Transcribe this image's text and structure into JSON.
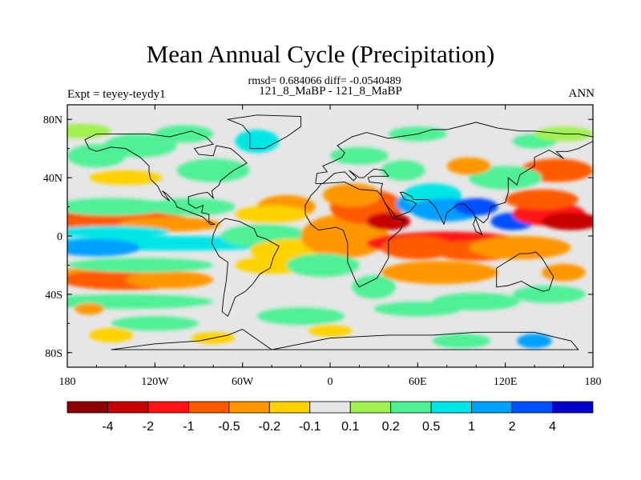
{
  "header": {
    "title": "Mean Annual Cycle (Precipitation)",
    "stats": "rmsd= 0.684066 diff= -0.0540489",
    "left_label": "Expt = teyey-teydy1",
    "center_label": "121_8_MaBP - 121_8_MaBP",
    "right_label": "ANN"
  },
  "chart_data": {
    "type": "heatmap",
    "title": "Mean Annual Cycle (Precipitation)",
    "subtitle": "rmsd= 0.684066 diff= -0.0540489",
    "xlabel": "",
    "ylabel": "",
    "xlim": [
      -180,
      180
    ],
    "ylim": [
      -90,
      90
    ],
    "x_ticks": [
      {
        "value": -180,
        "label": "180"
      },
      {
        "value": -120,
        "label": "120W"
      },
      {
        "value": -60,
        "label": "60W"
      },
      {
        "value": 0,
        "label": "0"
      },
      {
        "value": 60,
        "label": "60E"
      },
      {
        "value": 120,
        "label": "120E"
      },
      {
        "value": 180,
        "label": "180"
      }
    ],
    "y_ticks": [
      {
        "value": 80,
        "label": "80N"
      },
      {
        "value": 40,
        "label": "40N"
      },
      {
        "value": 0,
        "label": "0"
      },
      {
        "value": -40,
        "label": "40S"
      },
      {
        "value": -80,
        "label": "80S"
      }
    ],
    "colorbar": {
      "colors": [
        "#8c0000",
        "#c80000",
        "#ff1414",
        "#ff5a00",
        "#ff9600",
        "#ffd200",
        "#e6e6e6",
        "#a0f050",
        "#50f096",
        "#00e6e6",
        "#00a0ff",
        "#0050ff",
        "#0000c8"
      ],
      "labels": [
        "-4",
        "-2",
        "-1",
        "-0.5",
        "-0.2",
        "-0.1",
        "0.1",
        "0.2",
        "0.5",
        "1",
        "2",
        "4"
      ],
      "neutral_color": "#e6e6e6"
    },
    "anomalies": [
      {
        "lon": -172,
        "lat": 12,
        "w": 22,
        "h": 6,
        "cls": 1
      },
      {
        "lon": -160,
        "lat": 12,
        "w": 30,
        "h": 8,
        "cls": 2
      },
      {
        "lon": -140,
        "lat": 10,
        "w": 45,
        "h": 7,
        "cls": 3
      },
      {
        "lon": -110,
        "lat": 8,
        "w": 35,
        "h": 5,
        "cls": 4
      },
      {
        "lon": -150,
        "lat": 3,
        "w": 40,
        "h": 4,
        "cls": 9
      },
      {
        "lon": -110,
        "lat": -5,
        "w": 90,
        "h": 5,
        "cls": 9
      },
      {
        "lon": -160,
        "lat": -8,
        "w": 30,
        "h": 6,
        "cls": 10
      },
      {
        "lon": -150,
        "lat": 20,
        "w": 40,
        "h": 6,
        "cls": 8
      },
      {
        "lon": -95,
        "lat": 20,
        "w": 30,
        "h": 6,
        "cls": 8
      },
      {
        "lon": -170,
        "lat": -28,
        "w": 20,
        "h": 6,
        "cls": 4
      },
      {
        "lon": -140,
        "lat": -30,
        "w": 45,
        "h": 7,
        "cls": 3
      },
      {
        "lon": -110,
        "lat": -30,
        "w": 30,
        "h": 6,
        "cls": 4
      },
      {
        "lon": -130,
        "lat": -20,
        "w": 50,
        "h": 5,
        "cls": 8
      },
      {
        "lon": -140,
        "lat": -45,
        "w": 60,
        "h": 5,
        "cls": 8
      },
      {
        "lon": -160,
        "lat": 55,
        "w": 20,
        "h": 8,
        "cls": 8
      },
      {
        "lon": -130,
        "lat": 62,
        "w": 25,
        "h": 8,
        "cls": 8
      },
      {
        "lon": -170,
        "lat": 72,
        "w": 20,
        "h": 5,
        "cls": 7
      },
      {
        "lon": -140,
        "lat": 40,
        "w": 25,
        "h": 5,
        "cls": 5
      },
      {
        "lon": -80,
        "lat": 45,
        "w": 25,
        "h": 8,
        "cls": 8
      },
      {
        "lon": -50,
        "lat": 65,
        "w": 15,
        "h": 8,
        "cls": 9
      },
      {
        "lon": -30,
        "lat": 20,
        "w": 20,
        "h": 8,
        "cls": 4
      },
      {
        "lon": -40,
        "lat": 15,
        "w": 25,
        "h": 6,
        "cls": 5
      },
      {
        "lon": -45,
        "lat": 0,
        "w": 30,
        "h": 8,
        "cls": 8
      },
      {
        "lon": -40,
        "lat": -20,
        "w": 25,
        "h": 6,
        "cls": 5
      },
      {
        "lon": -25,
        "lat": -10,
        "w": 30,
        "h": 8,
        "cls": 5
      },
      {
        "lon": 10,
        "lat": 0,
        "w": 30,
        "h": 15,
        "cls": 4
      },
      {
        "lon": 25,
        "lat": 20,
        "w": 25,
        "h": 12,
        "cls": 3
      },
      {
        "lon": 15,
        "lat": 28,
        "w": 20,
        "h": 8,
        "cls": 4
      },
      {
        "lon": -5,
        "lat": -20,
        "w": 25,
        "h": 8,
        "cls": 8
      },
      {
        "lon": 30,
        "lat": -35,
        "w": 15,
        "h": 8,
        "cls": 8
      },
      {
        "lon": 55,
        "lat": 22,
        "w": 10,
        "h": 6,
        "cls": 10
      },
      {
        "lon": 70,
        "lat": 28,
        "w": 20,
        "h": 8,
        "cls": 9
      },
      {
        "lon": 80,
        "lat": 18,
        "w": 25,
        "h": 8,
        "cls": 10
      },
      {
        "lon": 100,
        "lat": 20,
        "w": 15,
        "h": 6,
        "cls": 11
      },
      {
        "lon": 125,
        "lat": 10,
        "w": 15,
        "h": 6,
        "cls": 11
      },
      {
        "lon": 80,
        "lat": -5,
        "w": 55,
        "h": 8,
        "cls": 2
      },
      {
        "lon": 100,
        "lat": -10,
        "w": 30,
        "h": 7,
        "cls": 3
      },
      {
        "lon": 60,
        "lat": -8,
        "w": 25,
        "h": 8,
        "cls": 3
      },
      {
        "lon": 75,
        "lat": -25,
        "w": 40,
        "h": 8,
        "cls": 4
      },
      {
        "lon": 130,
        "lat": -8,
        "w": 35,
        "h": 8,
        "cls": 4
      },
      {
        "lon": 150,
        "lat": 15,
        "w": 25,
        "h": 8,
        "cls": 2
      },
      {
        "lon": 145,
        "lat": 25,
        "w": 25,
        "h": 7,
        "cls": 3
      },
      {
        "lon": 165,
        "lat": 10,
        "w": 20,
        "h": 6,
        "cls": 1
      },
      {
        "lon": 155,
        "lat": 45,
        "w": 25,
        "h": 8,
        "cls": 3
      },
      {
        "lon": 120,
        "lat": 40,
        "w": 25,
        "h": 8,
        "cls": 8
      },
      {
        "lon": 95,
        "lat": 48,
        "w": 15,
        "h": 6,
        "cls": 4
      },
      {
        "lon": 50,
        "lat": 45,
        "w": 15,
        "h": 7,
        "cls": 8
      },
      {
        "lon": 20,
        "lat": 55,
        "w": 20,
        "h": 6,
        "cls": 8
      },
      {
        "lon": 140,
        "lat": 65,
        "w": 15,
        "h": 5,
        "cls": 8
      },
      {
        "lon": 160,
        "lat": 70,
        "w": 20,
        "h": 5,
        "cls": 7
      },
      {
        "lon": 100,
        "lat": -45,
        "w": 30,
        "h": 6,
        "cls": 8
      },
      {
        "lon": 150,
        "lat": -40,
        "w": 25,
        "h": 6,
        "cls": 8
      },
      {
        "lon": 160,
        "lat": -25,
        "w": 15,
        "h": 6,
        "cls": 4
      },
      {
        "lon": 60,
        "lat": -50,
        "w": 30,
        "h": 5,
        "cls": 8
      },
      {
        "lon": -20,
        "lat": -55,
        "w": 30,
        "h": 6,
        "cls": 8
      },
      {
        "lon": -120,
        "lat": -60,
        "w": 30,
        "h": 5,
        "cls": 8
      },
      {
        "lon": -150,
        "lat": -68,
        "w": 15,
        "h": 5,
        "cls": 5
      },
      {
        "lon": -80,
        "lat": -70,
        "w": 15,
        "h": 4,
        "cls": 5
      },
      {
        "lon": 0,
        "lat": -65,
        "w": 15,
        "h": 4,
        "cls": 5
      },
      {
        "lon": 90,
        "lat": -72,
        "w": 20,
        "h": 5,
        "cls": 8
      },
      {
        "lon": 140,
        "lat": -72,
        "w": 12,
        "h": 5,
        "cls": 10
      },
      {
        "lon": -100,
        "lat": 70,
        "w": 20,
        "h": 6,
        "cls": 8
      },
      {
        "lon": 60,
        "lat": 70,
        "w": 20,
        "h": 5,
        "cls": 8
      },
      {
        "lon": -165,
        "lat": -50,
        "w": 10,
        "h": 4,
        "cls": 4
      },
      {
        "lon": 40,
        "lat": 10,
        "w": 15,
        "h": 6,
        "cls": 1
      }
    ],
    "coastlines": [
      [
        [
          -168,
          66
        ],
        [
          -160,
          70
        ],
        [
          -140,
          70
        ],
        [
          -125,
          70
        ],
        [
          -110,
          68
        ],
        [
          -95,
          72
        ],
        [
          -85,
          68
        ],
        [
          -80,
          63
        ],
        [
          -93,
          60
        ],
        [
          -90,
          56
        ],
        [
          -80,
          55
        ],
        [
          -78,
          62
        ],
        [
          -68,
          60
        ],
        [
          -62,
          55
        ],
        [
          -57,
          50
        ],
        [
          -66,
          45
        ],
        [
          -70,
          42
        ],
        [
          -75,
          38
        ],
        [
          -76,
          35
        ],
        [
          -81,
          31
        ],
        [
          -80,
          26
        ],
        [
          -82,
          28
        ],
        [
          -84,
          30
        ],
        [
          -90,
          29
        ],
        [
          -97,
          27
        ],
        [
          -97,
          22
        ],
        [
          -92,
          19
        ],
        [
          -87,
          21
        ],
        [
          -88,
          16
        ],
        [
          -83,
          15
        ],
        [
          -83,
          10
        ],
        [
          -79,
          8
        ],
        [
          -82,
          8
        ],
        [
          -87,
          13
        ],
        [
          -95,
          16
        ],
        [
          -105,
          20
        ],
        [
          -106,
          23
        ],
        [
          -112,
          29
        ],
        [
          -115,
          31
        ],
        [
          -114,
          30
        ],
        [
          -110,
          24
        ],
        [
          -115,
          28
        ],
        [
          -118,
          34
        ],
        [
          -123,
          39
        ],
        [
          -124,
          44
        ],
        [
          -124,
          48
        ],
        [
          -130,
          54
        ],
        [
          -140,
          60
        ],
        [
          -150,
          61
        ],
        [
          -160,
          58
        ],
        [
          -165,
          60
        ],
        [
          -168,
          66
        ]
      ],
      [
        [
          -77,
          8
        ],
        [
          -72,
          12
        ],
        [
          -62,
          10
        ],
        [
          -52,
          5
        ],
        [
          -50,
          0
        ],
        [
          -44,
          -2
        ],
        [
          -35,
          -7
        ],
        [
          -39,
          -15
        ],
        [
          -41,
          -22
        ],
        [
          -48,
          -26
        ],
        [
          -53,
          -33
        ],
        [
          -58,
          -38
        ],
        [
          -65,
          -42
        ],
        [
          -68,
          -50
        ],
        [
          -70,
          -55
        ],
        [
          -74,
          -52
        ],
        [
          -73,
          -42
        ],
        [
          -71,
          -30
        ],
        [
          -70,
          -18
        ],
        [
          -76,
          -14
        ],
        [
          -81,
          -5
        ],
        [
          -80,
          1
        ],
        [
          -77,
          8
        ]
      ],
      [
        [
          -55,
          60
        ],
        [
          -45,
          60
        ],
        [
          -30,
          68
        ],
        [
          -20,
          75
        ],
        [
          -20,
          82
        ],
        [
          -50,
          83
        ],
        [
          -70,
          80
        ],
        [
          -60,
          76
        ],
        [
          -55,
          70
        ],
        [
          -55,
          60
        ]
      ],
      [
        [
          -17,
          15
        ],
        [
          -17,
          21
        ],
        [
          -13,
          28
        ],
        [
          -9,
          32
        ],
        [
          -6,
          36
        ],
        [
          10,
          37
        ],
        [
          20,
          32
        ],
        [
          32,
          31
        ],
        [
          35,
          28
        ],
        [
          43,
          12
        ],
        [
          51,
          11
        ],
        [
          48,
          4
        ],
        [
          40,
          -3
        ],
        [
          40,
          -15
        ],
        [
          35,
          -24
        ],
        [
          32,
          -29
        ],
        [
          20,
          -35
        ],
        [
          18,
          -32
        ],
        [
          12,
          -18
        ],
        [
          12,
          -5
        ],
        [
          9,
          4
        ],
        [
          4,
          6
        ],
        [
          -8,
          4
        ],
        [
          -13,
          8
        ],
        [
          -17,
          15
        ]
      ],
      [
        [
          -10,
          36
        ],
        [
          -9,
          43
        ],
        [
          -2,
          44
        ],
        [
          -5,
          48
        ],
        [
          2,
          51
        ],
        [
          8,
          54
        ],
        [
          10,
          57
        ],
        [
          5,
          62
        ],
        [
          15,
          68
        ],
        [
          25,
          71
        ],
        [
          40,
          67
        ],
        [
          60,
          70
        ],
        [
          70,
          73
        ],
        [
          80,
          73
        ],
        [
          100,
          78
        ],
        [
          115,
          74
        ],
        [
          130,
          72
        ],
        [
          140,
          72
        ],
        [
          160,
          70
        ],
        [
          170,
          70
        ],
        [
          180,
          68
        ],
        [
          180,
          65
        ],
        [
          170,
          60
        ],
        [
          163,
          58
        ],
        [
          155,
          58
        ],
        [
          160,
          53
        ],
        [
          150,
          59
        ],
        [
          140,
          54
        ],
        [
          140,
          48
        ],
        [
          130,
          42
        ],
        [
          128,
          35
        ],
        [
          122,
          40
        ],
        [
          122,
          30
        ],
        [
          120,
          23
        ],
        [
          110,
          20
        ],
        [
          108,
          12
        ],
        [
          105,
          9
        ],
        [
          100,
          13
        ],
        [
          98,
          8
        ],
        [
          100,
          3
        ],
        [
          104,
          1
        ],
        [
          98,
          16
        ],
        [
          92,
          22
        ],
        [
          88,
          22
        ],
        [
          80,
          16
        ],
        [
          78,
          8
        ],
        [
          72,
          20
        ],
        [
          67,
          25
        ],
        [
          57,
          25
        ],
        [
          56,
          27
        ],
        [
          50,
          30
        ],
        [
          48,
          30
        ],
        [
          51,
          25
        ],
        [
          56,
          24
        ],
        [
          59,
          22
        ],
        [
          55,
          17
        ],
        [
          45,
          13
        ],
        [
          43,
          16
        ],
        [
          38,
          22
        ],
        [
          35,
          28
        ],
        [
          35,
          33
        ],
        [
          36,
          36
        ],
        [
          27,
          37
        ],
        [
          26,
          40
        ],
        [
          29,
          41
        ],
        [
          40,
          41
        ],
        [
          37,
          45
        ],
        [
          30,
          46
        ],
        [
          23,
          40
        ],
        [
          20,
          40
        ],
        [
          13,
          45
        ],
        [
          18,
          40
        ],
        [
          16,
          38
        ],
        [
          10,
          44
        ],
        [
          3,
          43
        ],
        [
          -5,
          36
        ],
        [
          -10,
          36
        ]
      ],
      [
        [
          114,
          -22
        ],
        [
          114,
          -35
        ],
        [
          122,
          -34
        ],
        [
          131,
          -31
        ],
        [
          138,
          -35
        ],
        [
          146,
          -38
        ],
        [
          150,
          -37
        ],
        [
          153,
          -28
        ],
        [
          145,
          -15
        ],
        [
          141,
          -11
        ],
        [
          136,
          -12
        ],
        [
          130,
          -12
        ],
        [
          122,
          -17
        ],
        [
          114,
          -22
        ]
      ],
      [
        [
          -60,
          -64
        ],
        [
          -40,
          -78
        ],
        [
          0,
          -70
        ],
        [
          40,
          -68
        ],
        [
          70,
          -68
        ],
        [
          100,
          -66
        ],
        [
          140,
          -66
        ],
        [
          165,
          -72
        ],
        [
          170,
          -78
        ],
        [
          -150,
          -78
        ],
        [
          -120,
          -74
        ],
        [
          -90,
          -72
        ],
        [
          -70,
          -68
        ],
        [
          -60,
          -64
        ]
      ]
    ]
  }
}
